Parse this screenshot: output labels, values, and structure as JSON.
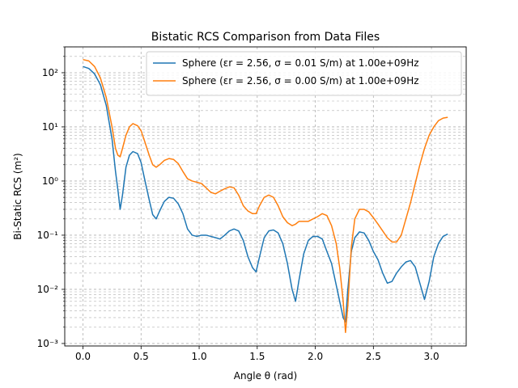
{
  "chart_data": {
    "type": "line",
    "title": "Bistatic RCS Comparison from Data Files",
    "xlabel": "Angle θ (rad)",
    "ylabel": "Bi-Static RCS (m²)",
    "yscale": "log",
    "xlim": [
      -0.157,
      3.299
    ],
    "ylim": [
      0.0009,
      300
    ],
    "xticks": [
      0.0,
      0.5,
      1.0,
      1.5,
      2.0,
      2.5,
      3.0
    ],
    "xtick_labels": [
      "0.0",
      "0.5",
      "1.0",
      "1.5",
      "2.0",
      "2.5",
      "3.0"
    ],
    "yticks": [
      0.001,
      0.01,
      0.1,
      1,
      10,
      100
    ],
    "ytick_labels": [
      "10⁻³",
      "10⁻²",
      "10⁻¹",
      "10⁰",
      "10¹",
      "10²"
    ],
    "grid": true,
    "grid_style": "dashed, major and minor",
    "legend_position": "top-right",
    "series": [
      {
        "name": "Sphere (εr = 2.56, σ = 0.01 S/m) at 1.00e+09Hz",
        "color": "#1f77b4",
        "x": [
          0.0,
          0.05,
          0.1,
          0.15,
          0.2,
          0.25,
          0.28,
          0.3,
          0.32,
          0.34,
          0.37,
          0.4,
          0.43,
          0.47,
          0.5,
          0.53,
          0.57,
          0.6,
          0.63,
          0.66,
          0.7,
          0.74,
          0.78,
          0.82,
          0.86,
          0.9,
          0.94,
          0.98,
          1.02,
          1.06,
          1.1,
          1.14,
          1.18,
          1.22,
          1.26,
          1.3,
          1.34,
          1.38,
          1.42,
          1.46,
          1.49,
          1.52,
          1.56,
          1.6,
          1.64,
          1.68,
          1.72,
          1.76,
          1.8,
          1.83,
          1.86,
          1.9,
          1.94,
          1.98,
          2.02,
          2.06,
          2.1,
          2.14,
          2.18,
          2.21,
          2.24,
          2.26,
          2.28,
          2.31,
          2.34,
          2.38,
          2.42,
          2.46,
          2.5,
          2.54,
          2.58,
          2.62,
          2.66,
          2.7,
          2.74,
          2.78,
          2.82,
          2.86,
          2.9,
          2.94,
          2.98,
          3.02,
          3.06,
          3.1,
          3.14
        ],
        "y": [
          130,
          120,
          95,
          60,
          25,
          6,
          1.5,
          0.7,
          0.3,
          0.55,
          1.8,
          3.0,
          3.5,
          3.2,
          2.2,
          1.1,
          0.45,
          0.24,
          0.2,
          0.28,
          0.42,
          0.5,
          0.48,
          0.38,
          0.25,
          0.13,
          0.1,
          0.095,
          0.1,
          0.1,
          0.095,
          0.09,
          0.085,
          0.1,
          0.12,
          0.13,
          0.12,
          0.08,
          0.04,
          0.025,
          0.021,
          0.04,
          0.09,
          0.12,
          0.125,
          0.11,
          0.07,
          0.03,
          0.01,
          0.006,
          0.015,
          0.045,
          0.08,
          0.095,
          0.095,
          0.085,
          0.05,
          0.03,
          0.012,
          0.006,
          0.003,
          0.0025,
          0.01,
          0.05,
          0.09,
          0.115,
          0.11,
          0.08,
          0.05,
          0.035,
          0.02,
          0.013,
          0.014,
          0.02,
          0.026,
          0.032,
          0.034,
          0.026,
          0.013,
          0.0065,
          0.014,
          0.04,
          0.07,
          0.095,
          0.105
        ]
      },
      {
        "name": "Sphere (εr = 2.56, σ = 0.00 S/m) at 1.00e+09Hz",
        "color": "#ff7f0e",
        "x": [
          0.0,
          0.05,
          0.1,
          0.15,
          0.2,
          0.25,
          0.28,
          0.3,
          0.32,
          0.34,
          0.37,
          0.4,
          0.43,
          0.47,
          0.5,
          0.53,
          0.57,
          0.6,
          0.63,
          0.66,
          0.7,
          0.74,
          0.78,
          0.82,
          0.86,
          0.9,
          0.94,
          0.98,
          1.02,
          1.06,
          1.1,
          1.14,
          1.18,
          1.22,
          1.26,
          1.3,
          1.34,
          1.38,
          1.42,
          1.46,
          1.49,
          1.52,
          1.56,
          1.6,
          1.64,
          1.68,
          1.72,
          1.76,
          1.8,
          1.83,
          1.86,
          1.9,
          1.94,
          1.98,
          2.02,
          2.06,
          2.1,
          2.14,
          2.18,
          2.21,
          2.24,
          2.26,
          2.28,
          2.31,
          2.34,
          2.38,
          2.42,
          2.46,
          2.5,
          2.54,
          2.58,
          2.62,
          2.66,
          2.7,
          2.74,
          2.78,
          2.82,
          2.86,
          2.9,
          2.94,
          2.98,
          3.02,
          3.06,
          3.1,
          3.14
        ],
        "y": [
          175,
          165,
          130,
          80,
          35,
          10,
          4,
          3.0,
          2.8,
          4.0,
          7.0,
          10.0,
          11.5,
          10.5,
          8.5,
          5.5,
          3.0,
          2.0,
          1.8,
          2.0,
          2.4,
          2.6,
          2.5,
          2.1,
          1.5,
          1.1,
          1.0,
          0.95,
          0.9,
          0.75,
          0.62,
          0.58,
          0.65,
          0.72,
          0.78,
          0.75,
          0.55,
          0.35,
          0.28,
          0.25,
          0.25,
          0.35,
          0.5,
          0.55,
          0.5,
          0.35,
          0.22,
          0.17,
          0.15,
          0.16,
          0.18,
          0.18,
          0.18,
          0.2,
          0.22,
          0.25,
          0.23,
          0.15,
          0.07,
          0.025,
          0.006,
          0.0016,
          0.005,
          0.06,
          0.2,
          0.3,
          0.3,
          0.27,
          0.21,
          0.16,
          0.12,
          0.09,
          0.075,
          0.075,
          0.1,
          0.2,
          0.4,
          0.9,
          2.0,
          4.0,
          7.0,
          10.0,
          13.0,
          14.5,
          15.0
        ]
      }
    ]
  }
}
